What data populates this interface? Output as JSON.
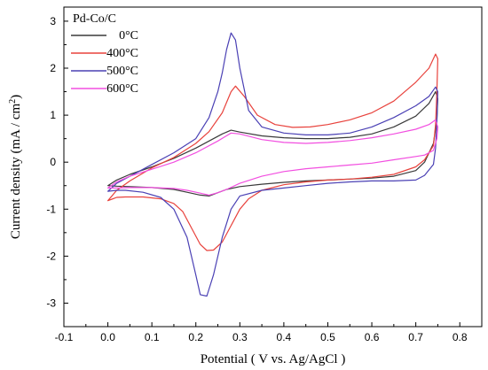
{
  "chart_data": {
    "type": "line",
    "title": "",
    "xlabel": "Potential ( V vs. Ag/AgCl )",
    "ylabel": "Current density (mA / cm",
    "ylabel_sup": "2",
    "ylabel_end": ")",
    "xlim": [
      -0.1,
      0.85
    ],
    "ylim": [
      -3.5,
      3.3
    ],
    "xticks": [
      -0.1,
      0.0,
      0.1,
      0.2,
      0.3,
      0.4,
      0.5,
      0.6,
      0.7,
      0.8
    ],
    "xtick_labels": [
      "-0.1",
      "0.0",
      "0.1",
      "0.2",
      "0.3",
      "0.4",
      "0.5",
      "0.6",
      "0.7",
      "0.8"
    ],
    "yticks": [
      -3,
      -2,
      -1,
      0,
      1,
      2,
      3
    ],
    "ytick_labels": [
      "-3",
      "-2",
      "-1",
      "0",
      "1",
      "2",
      "3"
    ],
    "grid": false,
    "legend": {
      "title": "Pd-Co/C",
      "placement": "top-left"
    },
    "series": [
      {
        "name": "0°C",
        "color": "#3a3a3a",
        "x": [
          0.0,
          0.02,
          0.05,
          0.1,
          0.15,
          0.2,
          0.23,
          0.26,
          0.28,
          0.3,
          0.35,
          0.4,
          0.45,
          0.5,
          0.55,
          0.6,
          0.65,
          0.7,
          0.73,
          0.745,
          0.75,
          0.748,
          0.74,
          0.72,
          0.7,
          0.65,
          0.6,
          0.55,
          0.5,
          0.45,
          0.4,
          0.35,
          0.3,
          0.27,
          0.25,
          0.23,
          0.21,
          0.18,
          0.15,
          0.1,
          0.05,
          0.02,
          0.0
        ],
        "y": [
          -0.5,
          -0.38,
          -0.26,
          -0.1,
          0.08,
          0.3,
          0.45,
          0.6,
          0.68,
          0.64,
          0.56,
          0.52,
          0.5,
          0.5,
          0.53,
          0.6,
          0.75,
          0.98,
          1.25,
          1.5,
          1.35,
          0.9,
          0.4,
          0.0,
          -0.18,
          -0.3,
          -0.34,
          -0.36,
          -0.38,
          -0.4,
          -0.43,
          -0.47,
          -0.52,
          -0.58,
          -0.65,
          -0.72,
          -0.7,
          -0.64,
          -0.58,
          -0.54,
          -0.52,
          -0.51,
          -0.5
        ]
      },
      {
        "name": "400°C",
        "color": "#e8423c",
        "x": [
          0.0,
          0.02,
          0.05,
          0.1,
          0.15,
          0.2,
          0.23,
          0.26,
          0.28,
          0.29,
          0.31,
          0.34,
          0.38,
          0.42,
          0.46,
          0.5,
          0.55,
          0.6,
          0.65,
          0.7,
          0.73,
          0.745,
          0.75,
          0.748,
          0.745,
          0.74,
          0.72,
          0.7,
          0.65,
          0.6,
          0.55,
          0.5,
          0.45,
          0.4,
          0.35,
          0.32,
          0.3,
          0.28,
          0.26,
          0.24,
          0.225,
          0.21,
          0.19,
          0.17,
          0.15,
          0.12,
          0.08,
          0.04,
          0.02,
          0.0
        ],
        "y": [
          -0.82,
          -0.6,
          -0.4,
          -0.12,
          0.1,
          0.4,
          0.65,
          1.05,
          1.5,
          1.62,
          1.4,
          1.0,
          0.8,
          0.74,
          0.75,
          0.8,
          0.9,
          1.05,
          1.3,
          1.7,
          2.0,
          2.3,
          2.2,
          1.5,
          0.8,
          0.35,
          0.05,
          -0.1,
          -0.26,
          -0.32,
          -0.36,
          -0.38,
          -0.42,
          -0.48,
          -0.6,
          -0.78,
          -1.0,
          -1.35,
          -1.7,
          -1.87,
          -1.88,
          -1.75,
          -1.4,
          -1.05,
          -0.88,
          -0.78,
          -0.74,
          -0.74,
          -0.75,
          -0.82
        ]
      },
      {
        "name": "500°C",
        "color": "#4a40b4",
        "x": [
          0.0,
          0.02,
          0.05,
          0.1,
          0.15,
          0.2,
          0.23,
          0.25,
          0.26,
          0.27,
          0.28,
          0.29,
          0.3,
          0.32,
          0.35,
          0.4,
          0.45,
          0.5,
          0.55,
          0.6,
          0.65,
          0.7,
          0.73,
          0.745,
          0.75,
          0.748,
          0.745,
          0.74,
          0.72,
          0.7,
          0.65,
          0.6,
          0.55,
          0.5,
          0.45,
          0.4,
          0.35,
          0.3,
          0.28,
          0.26,
          0.24,
          0.225,
          0.21,
          0.2,
          0.18,
          0.15,
          0.12,
          0.08,
          0.04,
          0.02,
          0.0
        ],
        "y": [
          -0.62,
          -0.45,
          -0.3,
          -0.05,
          0.2,
          0.5,
          0.95,
          1.5,
          1.9,
          2.4,
          2.75,
          2.6,
          2.0,
          1.1,
          0.75,
          0.62,
          0.58,
          0.58,
          0.62,
          0.75,
          0.95,
          1.2,
          1.4,
          1.6,
          1.5,
          0.9,
          0.3,
          -0.05,
          -0.28,
          -0.38,
          -0.4,
          -0.4,
          -0.42,
          -0.45,
          -0.5,
          -0.55,
          -0.6,
          -0.72,
          -1.0,
          -1.6,
          -2.4,
          -2.85,
          -2.82,
          -2.4,
          -1.6,
          -1.0,
          -0.75,
          -0.64,
          -0.6,
          -0.6,
          -0.62
        ]
      },
      {
        "name": "600°C",
        "color": "#f24ee0",
        "x": [
          0.0,
          0.02,
          0.05,
          0.1,
          0.15,
          0.2,
          0.25,
          0.28,
          0.3,
          0.35,
          0.4,
          0.45,
          0.5,
          0.55,
          0.6,
          0.65,
          0.7,
          0.73,
          0.745,
          0.75,
          0.748,
          0.74,
          0.72,
          0.7,
          0.65,
          0.6,
          0.55,
          0.5,
          0.45,
          0.4,
          0.35,
          0.3,
          0.27,
          0.25,
          0.23,
          0.21,
          0.18,
          0.15,
          0.1,
          0.05,
          0.02,
          0.0
        ],
        "y": [
          -0.55,
          -0.42,
          -0.3,
          -0.15,
          0.0,
          0.2,
          0.45,
          0.62,
          0.6,
          0.48,
          0.42,
          0.4,
          0.42,
          0.46,
          0.52,
          0.6,
          0.7,
          0.8,
          0.9,
          0.75,
          0.5,
          0.25,
          0.15,
          0.12,
          0.05,
          -0.02,
          -0.06,
          -0.1,
          -0.14,
          -0.2,
          -0.3,
          -0.45,
          -0.58,
          -0.65,
          -0.7,
          -0.66,
          -0.6,
          -0.56,
          -0.54,
          -0.54,
          -0.55,
          -0.55
        ]
      }
    ]
  }
}
